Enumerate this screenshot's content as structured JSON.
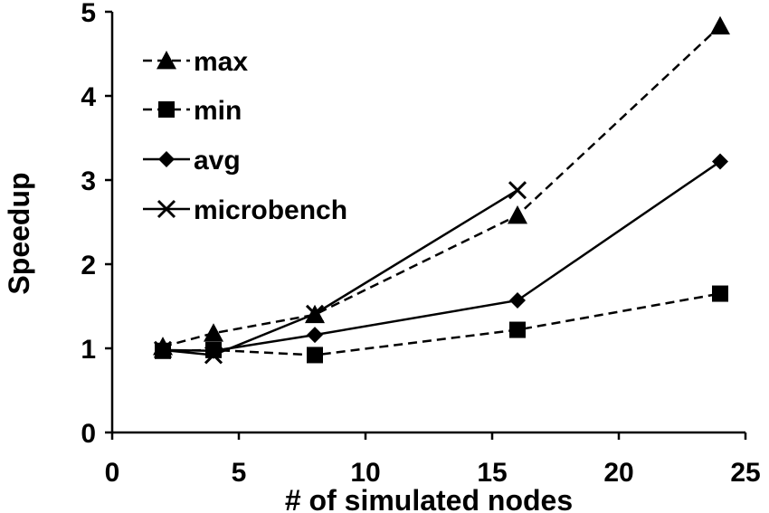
{
  "chart_data": {
    "type": "line",
    "title": "",
    "xlabel": "# of simulated nodes",
    "ylabel": "Speedup",
    "xlim": [
      0,
      25
    ],
    "ylim": [
      0,
      5
    ],
    "x_ticks": [
      0,
      5,
      10,
      15,
      20,
      25
    ],
    "y_ticks": [
      0,
      1,
      2,
      3,
      4,
      5
    ],
    "x_tick_labels": [
      "0",
      "5",
      "10",
      "15",
      "20",
      "25"
    ],
    "y_tick_labels": [
      "0",
      "1",
      "2",
      "3",
      "4",
      "5"
    ],
    "grid": false,
    "legend_position": "top-left",
    "series": [
      {
        "name": "max",
        "marker": "triangle",
        "line_style": "dashed",
        "color": "#000000",
        "x": [
          2,
          4,
          8,
          16,
          24
        ],
        "y": [
          1.02,
          1.18,
          1.4,
          2.58,
          4.83
        ]
      },
      {
        "name": "min",
        "marker": "square",
        "line_style": "dashed",
        "color": "#000000",
        "x": [
          2,
          4,
          8,
          16,
          24
        ],
        "y": [
          0.97,
          0.98,
          0.92,
          1.22,
          1.65
        ]
      },
      {
        "name": "avg",
        "marker": "diamond",
        "line_style": "solid",
        "color": "#000000",
        "x": [
          2,
          4,
          8,
          16,
          24
        ],
        "y": [
          0.98,
          0.97,
          1.16,
          1.57,
          3.22
        ]
      },
      {
        "name": "microbench",
        "marker": "x",
        "line_style": "solid",
        "color": "#000000",
        "x": [
          2,
          4,
          8,
          16
        ],
        "y": [
          0.98,
          0.92,
          1.41,
          2.88
        ]
      }
    ]
  }
}
